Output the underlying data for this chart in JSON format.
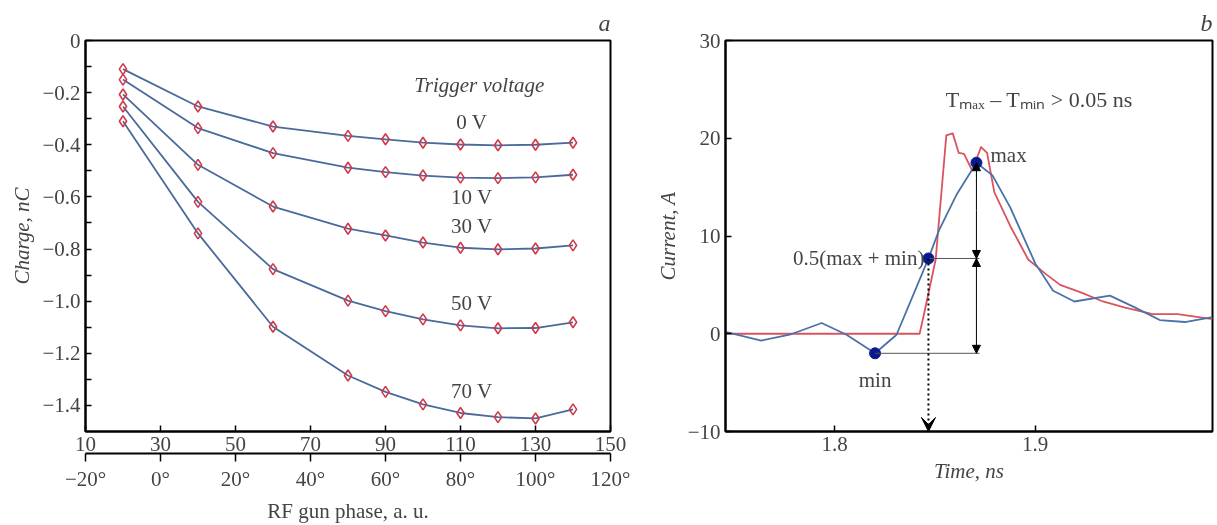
{
  "chart_data": [
    {
      "type": "line",
      "title": "a",
      "ylabel": "Charge, nC",
      "x2label": "RF gun phase, a. u.",
      "legend_title": "Trigger voltage",
      "marker": "diamond",
      "grid": false,
      "x": [
        20,
        40,
        60,
        80,
        90,
        100,
        110,
        120,
        130,
        140
      ],
      "xlim": [
        10,
        150
      ],
      "xticks": [
        10,
        30,
        50,
        70,
        90,
        110,
        130,
        150
      ],
      "x2lim": [
        -20,
        120
      ],
      "x2ticks": [
        {
          "value": -20,
          "label": "−20°"
        },
        {
          "value": 0,
          "label": "0°"
        },
        {
          "value": 20,
          "label": "20°"
        },
        {
          "value": 40,
          "label": "40°"
        },
        {
          "value": 60,
          "label": "60°"
        },
        {
          "value": 80,
          "label": "80°"
        },
        {
          "value": 100,
          "label": "100°"
        },
        {
          "value": 120,
          "label": "120°"
        }
      ],
      "ylim": [
        -1.5,
        0
      ],
      "yticks": [
        0,
        {
          "value": -0.1,
          "label": null
        },
        {
          "value": -0.2,
          "label": "−0.2"
        },
        {
          "value": -0.3,
          "label": null
        },
        {
          "value": -0.4,
          "label": "−0.4"
        },
        {
          "value": -0.5,
          "label": null
        },
        {
          "value": -0.6,
          "label": "−0.6"
        },
        {
          "value": -0.7,
          "label": null
        },
        {
          "value": -0.8,
          "label": "−0.8"
        },
        {
          "value": -0.9,
          "label": null
        },
        {
          "value": -1.0,
          "label": "−1.0"
        },
        {
          "value": -1.1,
          "label": null
        },
        {
          "value": -1.2,
          "label": "−1.2"
        },
        {
          "value": -1.3,
          "label": null
        },
        {
          "value": -1.4,
          "label": "−1.4"
        }
      ],
      "series": [
        {
          "name": "0 V",
          "color": "#4a6a9c",
          "values": [
            -0.11,
            -0.253,
            -0.33,
            -0.366,
            -0.379,
            -0.392,
            -0.399,
            -0.402,
            -0.4,
            -0.392
          ]
        },
        {
          "name": "10 V",
          "color": "#4a6a9c",
          "values": [
            -0.15,
            -0.336,
            -0.432,
            -0.488,
            -0.505,
            -0.518,
            -0.526,
            -0.528,
            -0.525,
            -0.515
          ]
        },
        {
          "name": "30 V",
          "color": "#4a6a9c",
          "values": [
            -0.207,
            -0.477,
            -0.637,
            -0.722,
            -0.748,
            -0.775,
            -0.795,
            -0.801,
            -0.798,
            -0.786
          ]
        },
        {
          "name": "50 V",
          "color": "#4a6a9c",
          "values": [
            -0.253,
            -0.619,
            -0.877,
            -0.998,
            -1.038,
            -1.07,
            -1.093,
            -1.104,
            -1.103,
            -1.081
          ]
        },
        {
          "name": "70 V",
          "color": "#4a6a9c",
          "values": [
            -0.31,
            -0.74,
            -1.098,
            -1.285,
            -1.348,
            -1.396,
            -1.429,
            -1.445,
            -1.45,
            -1.415
          ]
        }
      ]
    },
    {
      "type": "line",
      "title": "b",
      "xlabel": "Time, ns",
      "ylabel": "Current, A",
      "grid": false,
      "marker": "none",
      "xlim": [
        1.7457,
        1.9883
      ],
      "xticks": [
        1.8,
        1.9
      ],
      "ylim": [
        -10,
        30
      ],
      "yticks": [
        {
          "value": -10,
          "label": "−10"
        },
        0,
        10,
        20,
        30
      ],
      "annotations": [
        "Tₘₐₓ – Tₘᵢₙ > 0.05 ns",
        {
          "text": "min",
          "x": 1.8202,
          "y": -2
        },
        {
          "text": "0.5(max + min)",
          "x": 1.8468,
          "y": 7.7
        },
        {
          "text": "max",
          "x": 1.8707,
          "y": 17.5
        }
      ],
      "series": [
        {
          "color": "#d9545e",
          "x": [
            1.7457,
            1.8424,
            1.845,
            1.8504,
            1.8557,
            1.8589,
            1.8619,
            1.8645,
            1.8686,
            1.873,
            1.876,
            1.8796,
            1.8876,
            1.8965,
            1.9053,
            1.9124,
            1.923,
            1.9337,
            1.9443,
            1.9585,
            1.9709,
            1.9883
          ],
          "values": [
            0,
            0,
            2.4,
            7.6,
            20.3,
            20.5,
            18.5,
            18.4,
            16.7,
            19.1,
            18.5,
            14.5,
            11.0,
            7.6,
            6.1,
            5.0,
            4.2,
            3.3,
            2.7,
            2.0,
            2.0,
            1.5
          ]
        },
        {
          "color": "#4a72a8",
          "x": [
            1.7457,
            1.7635,
            1.7777,
            1.7936,
            1.806,
            1.8202,
            1.8309,
            1.8397,
            1.8468,
            1.8521,
            1.861,
            1.8707,
            1.8787,
            1.8876,
            1.9,
            1.9089,
            1.9195,
            1.9372,
            1.9496,
            1.962,
            1.9745,
            1.9883
          ],
          "values": [
            0.2,
            -0.7,
            -0.1,
            1.1,
            -0.1,
            -2,
            -0.1,
            4.2,
            7.7,
            10.6,
            14.3,
            17.5,
            16.2,
            12.9,
            7.2,
            4.4,
            3.3,
            3.9,
            2.7,
            1.4,
            1.2,
            1.7
          ]
        },
        {
          "type": "scatter",
          "marker": "circle",
          "color": "#0a1a8c",
          "x": [
            1.8202,
            1.8468,
            1.8707
          ],
          "values": [
            -2,
            7.7,
            17.5
          ]
        }
      ]
    }
  ]
}
